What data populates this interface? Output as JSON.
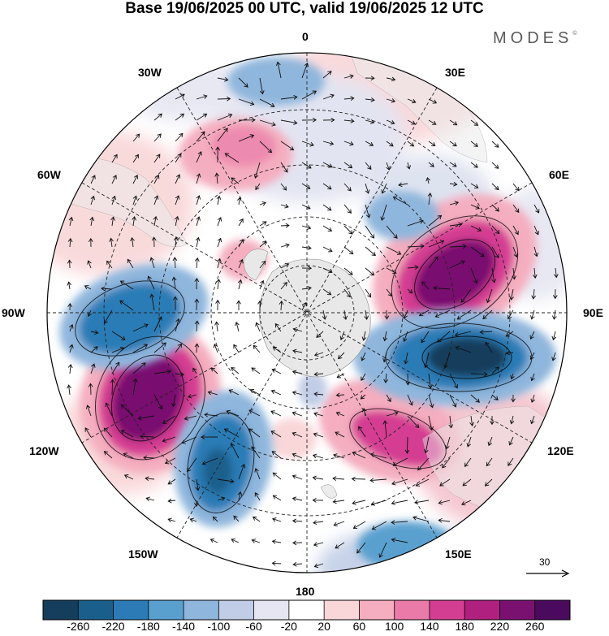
{
  "title": "Base 19/06/2025 00 UTC, valid 19/06/2025 12 UTC",
  "brand": "MODES",
  "brand_mark": "©",
  "longitude_labels": {
    "lon_0": "0",
    "lon_30e": "30E",
    "lon_60e": "60E",
    "lon_90e": "90E",
    "lon_120e": "120E",
    "lon_150e": "150E",
    "lon_180": "180",
    "lon_150w": "150W",
    "lon_120w": "120W",
    "lon_90w": "90W",
    "lon_60w": "60W",
    "lon_30w": "30W"
  },
  "reference_vector": "30",
  "colorbar": {
    "ticks": [
      "-260",
      "-220",
      "-180",
      "-140",
      "-100",
      "-60",
      "-20",
      "20",
      "60",
      "100",
      "140",
      "180",
      "220",
      "260"
    ],
    "colors": [
      "#153e5c",
      "#1a5f8c",
      "#2c7bb6",
      "#5aa0cf",
      "#8fb6dc",
      "#c1cde6",
      "#e6e6f2",
      "#ffffff",
      "#f9d6d8",
      "#f4aebf",
      "#ea7aa8",
      "#d43e92",
      "#b0207f",
      "#7a1170",
      "#4a0a5e"
    ]
  },
  "map": {
    "projection": "south-polar-stereographic",
    "field_colors": {
      "strong_neg": "#1a5f8c",
      "mid_neg": "#5aa0cf",
      "weak_neg": "#c1cde6",
      "strong_pos": "#7a1170",
      "mid_pos": "#d43e92",
      "weak_pos": "#f4aebf",
      "land": "#e6e6e6"
    }
  }
}
